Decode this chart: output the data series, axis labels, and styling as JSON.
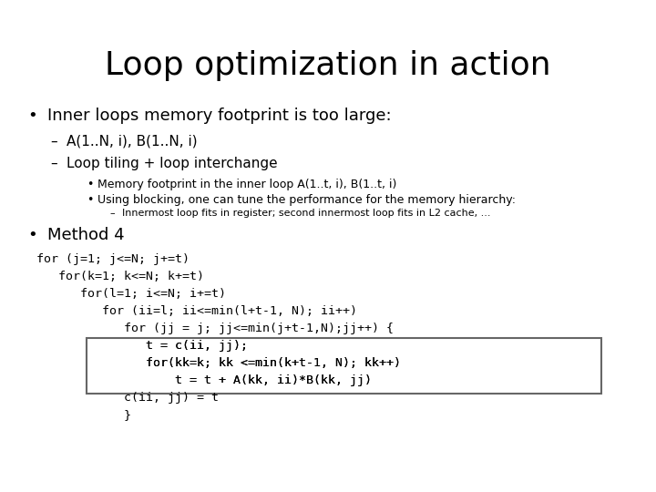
{
  "title": "Loop optimization in action",
  "title_fontsize": 26,
  "background_color": "#ffffff",
  "bullet1": "Inner loops memory footprint is too large:",
  "sub1a": "A(1..N, i), B(1..N, i)",
  "sub1b": "Loop tiling + loop interchange",
  "sub2a": "Memory footprint in the inner loop A(1..t, i), B(1..t, i)",
  "sub2b": "Using blocking, one can tune the performance for the memory hierarchy:",
  "sub3a": "Innermost loop fits in register; second innermost loop fits in L2 cache, ...",
  "bullet2": "Method 4",
  "code_lines": [
    "for (j=1; j<=N; j+=t)",
    "   for(k=1; k<=N; k+=t)",
    "      for(l=1; i<=N; i+=t)",
    "         for (ii=l; ii<=min(l+t-1, N); ii++)",
    "            for (jj = j; jj<=min(j+t-1,N);jj++) {",
    "               t = c(ii, jj);",
    "               for(kk=k; kk <=min(k+t-1, N); kk++)",
    "                   t = t + A(kk, ii)*B(kk, jj)",
    "            c(ii, jj) = t",
    "            }"
  ],
  "code_fontsize": 9.5,
  "box_color": "#666666"
}
